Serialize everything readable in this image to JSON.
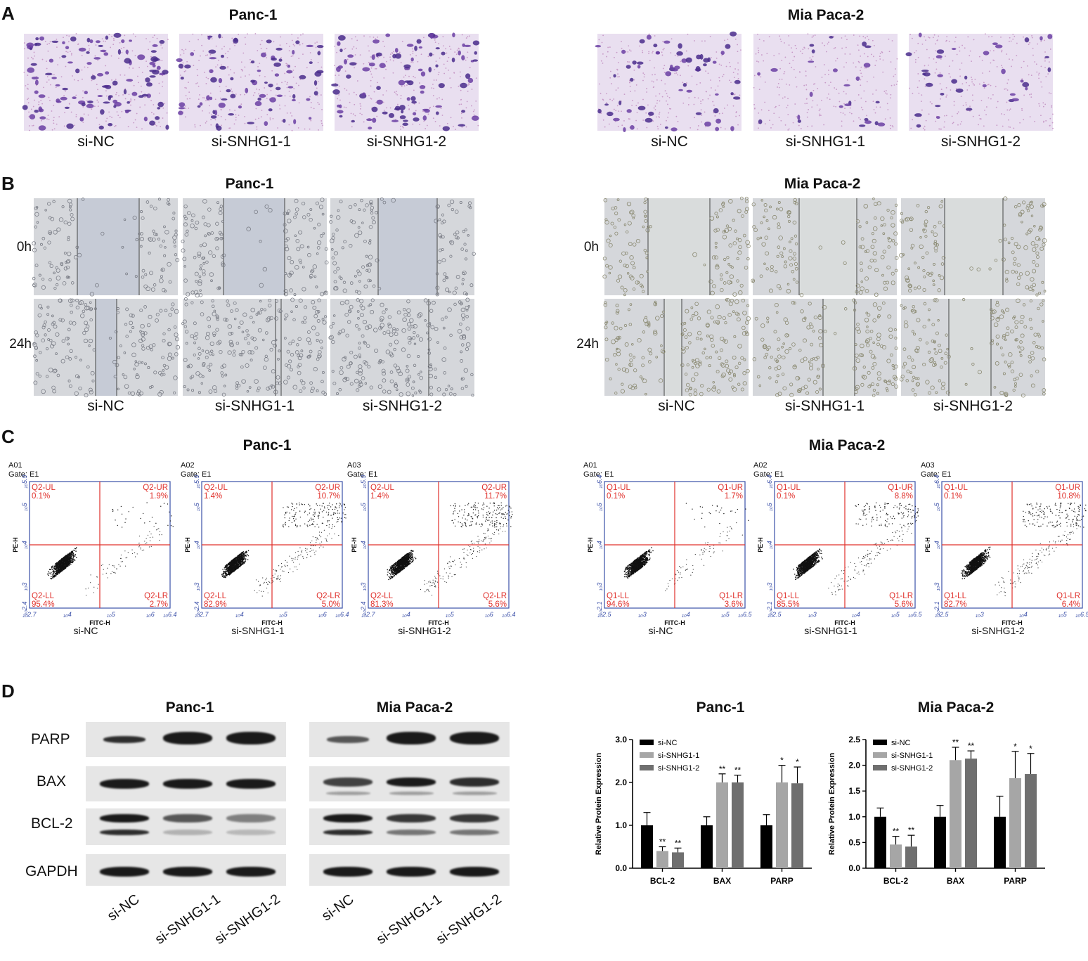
{
  "panels": {
    "A": "A",
    "B": "B",
    "C": "C",
    "D": "D"
  },
  "cells": {
    "left": "Panc-1",
    "right": "Mia Paca-2"
  },
  "groups": [
    "si-NC",
    "si-SNHG1-1",
    "si-SNHG1-2"
  ],
  "timepoints": [
    "0h",
    "24h"
  ],
  "flow": {
    "left": {
      "samples": [
        {
          "id": "A01",
          "gate": "Gate: E1",
          "ul": "Q2-UL",
          "ul_v": "0.1%",
          "ur": "Q2-UR",
          "ur_v": "1.9%",
          "ll": "Q2-LL",
          "ll_v": "95.4%",
          "lr": "Q2-LR",
          "lr_v": "2.7%"
        },
        {
          "id": "A02",
          "gate": "Gate: E1",
          "ul": "Q2-UL",
          "ul_v": "1.4%",
          "ur": "Q2-UR",
          "ur_v": "10.7%",
          "ll": "Q2-LL",
          "ll_v": "82.9%",
          "lr": "Q2-LR",
          "lr_v": "5.0%"
        },
        {
          "id": "A03",
          "gate": "Gate: E1",
          "ul": "Q2-UL",
          "ul_v": "1.4%",
          "ur": "Q2-UR",
          "ur_v": "11.7%",
          "ll": "Q2-LL",
          "ll_v": "81.3%",
          "lr": "Q2-LR",
          "lr_v": "5.6%"
        }
      ],
      "xticks": [
        "10^2.7",
        "10^4",
        "10^5",
        "10^6",
        "10^6.4"
      ],
      "yticks": [
        "10^2.4",
        "10^3",
        "10^4",
        "10^5",
        "10^5.9"
      ]
    },
    "right": {
      "samples": [
        {
          "id": "A01",
          "gate": "Gate: E1",
          "ul": "Q1-UL",
          "ul_v": "0.1%",
          "ur": "Q1-UR",
          "ur_v": "1.7%",
          "ll": "Q1-LL",
          "ll_v": "94.6%",
          "lr": "Q1-LR",
          "lr_v": "3.6%"
        },
        {
          "id": "A02",
          "gate": "Gate: E1",
          "ul": "Q1-UL",
          "ul_v": "0.1%",
          "ur": "Q1-UR",
          "ur_v": "8.8%",
          "ll": "Q1-LL",
          "ll_v": "85.5%",
          "lr": "Q1-LR",
          "lr_v": "5.6%"
        },
        {
          "id": "A03",
          "gate": "Gate: E1",
          "ul": "Q1-UL",
          "ul_v": "0.1%",
          "ur": "Q1-UR",
          "ur_v": "10.8%",
          "ll": "Q1-LL",
          "ll_v": "82.7%",
          "lr": "Q1-LR",
          "lr_v": "6.4%"
        }
      ],
      "xticks": [
        "10^2.5",
        "10^3",
        "10^4",
        "10^5",
        "10^6.5"
      ],
      "yticks": [
        "10^2.1",
        "10^3",
        "10^4",
        "10^5",
        "10^6.4"
      ]
    },
    "xlabel": "FITC-H",
    "ylabel": "PE-H"
  },
  "blot": {
    "proteins": [
      "PARP",
      "BAX",
      "BCL-2",
      "GAPDH"
    ]
  },
  "chart_data": [
    {
      "type": "bar",
      "title": "Panc-1",
      "categories": [
        "BCL-2",
        "BAX",
        "PARP"
      ],
      "series": [
        {
          "name": "si-NC",
          "values": [
            1.0,
            1.0,
            1.0
          ],
          "errors": [
            0.3,
            0.2,
            0.25
          ],
          "sig": [
            "",
            "",
            ""
          ]
        },
        {
          "name": "si-SNHG1-1",
          "values": [
            0.4,
            2.0,
            2.0
          ],
          "errors": [
            0.1,
            0.2,
            0.4
          ],
          "sig": [
            "**",
            "**",
            "*"
          ]
        },
        {
          "name": "si-SNHG1-2",
          "values": [
            0.37,
            2.0,
            1.98
          ],
          "errors": [
            0.1,
            0.17,
            0.38
          ],
          "sig": [
            "**",
            "**",
            "*"
          ]
        }
      ],
      "ylabel": "Relative Protein Expression",
      "ylim": [
        0,
        3.0
      ],
      "yticks": [
        "0.0",
        "1.0",
        "2.0",
        "3.0"
      ],
      "colors": [
        "#000000",
        "#a6a6a6",
        "#6f6f6f"
      ],
      "legend": "top-left"
    },
    {
      "type": "bar",
      "title": "Mia Paca-2",
      "categories": [
        "BCL-2",
        "BAX",
        "PARP"
      ],
      "series": [
        {
          "name": "si-NC",
          "values": [
            1.0,
            1.0,
            1.0
          ],
          "errors": [
            0.17,
            0.22,
            0.4
          ],
          "sig": [
            "",
            "",
            ""
          ]
        },
        {
          "name": "si-SNHG1-1",
          "values": [
            0.46,
            2.1,
            1.75
          ],
          "errors": [
            0.16,
            0.25,
            0.52
          ],
          "sig": [
            "**",
            "**",
            "*"
          ]
        },
        {
          "name": "si-SNHG1-2",
          "values": [
            0.42,
            2.13,
            1.83
          ],
          "errors": [
            0.22,
            0.15,
            0.4
          ],
          "sig": [
            "**",
            "**",
            "*"
          ]
        }
      ],
      "ylabel": "Relative Protein Expression",
      "ylim": [
        0,
        2.5
      ],
      "yticks": [
        "0.0",
        "0.5",
        "1.0",
        "1.5",
        "2.0",
        "2.5"
      ],
      "colors": [
        "#000000",
        "#a6a6a6",
        "#6f6f6f"
      ],
      "legend": "top-left"
    }
  ]
}
